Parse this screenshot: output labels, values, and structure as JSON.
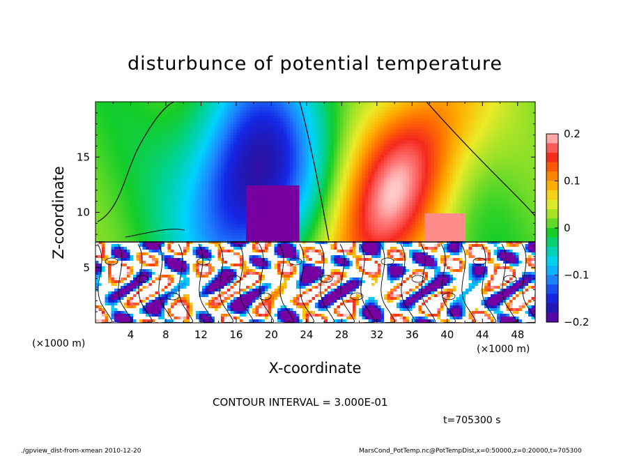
{
  "chart_data": {
    "type": "heatmap",
    "title": "disturbunce of potential temperature",
    "xlabel": "X-coordinate",
    "ylabel": "Z-coordinate",
    "x_unit_left": "(×1000 m)",
    "x_unit_right": "(×1000 m)",
    "xlim": [
      0,
      50
    ],
    "ylim": [
      0,
      20
    ],
    "xticks": [
      4,
      8,
      12,
      16,
      20,
      24,
      28,
      32,
      36,
      40,
      44,
      48
    ],
    "yticks": [
      5,
      10,
      15
    ],
    "colorbar": {
      "range": [
        -0.2,
        0.2
      ],
      "tick_values": [
        0.2,
        0.1,
        0,
        -0.1,
        -0.2
      ],
      "tick_labels": [
        "0.2",
        "0.1",
        "0",
        "−0.1",
        "−0.2"
      ]
    },
    "contour_interval": "CONTOUR INTERVAL = 3.000E-01",
    "time": "t=705300 s",
    "footer_left": "./gpview_dist-from-xmean  2010-12-20",
    "footer_right": "MarsCond_PotTemp.nc@PotTempDist,x=0:50000,z=0:20000,t=705300"
  }
}
